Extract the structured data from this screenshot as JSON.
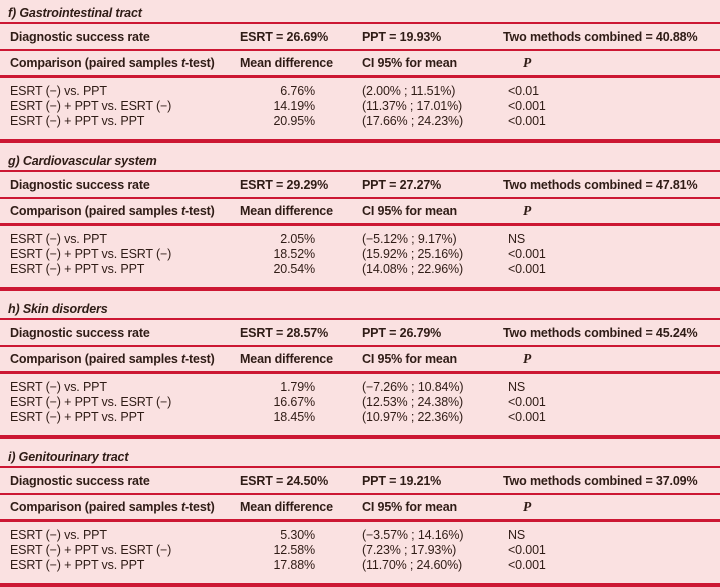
{
  "colors": {
    "background": "#fae1e1",
    "rule": "#cc1733",
    "text": "#2f1c16"
  },
  "table": {
    "success_label": "Diagnostic success rate",
    "comparison_header": {
      "pre": "Comparison (paired samples ",
      "t": "t",
      "post": "-test)",
      "mean": "Mean difference",
      "ci": "CI 95% for mean",
      "p": "P"
    },
    "sections": [
      {
        "title": "f) Gastrointestinal tract",
        "success": {
          "esrt": "ESRT = 26.69%",
          "ppt": "PPT = 19.93%",
          "combined": "Two methods combined = 40.88%"
        },
        "rows": [
          {
            "label": "ESRT (−) vs. PPT",
            "mean": "6.76%",
            "ci": "(2.00% ; 11.51%)",
            "p": "<0.01"
          },
          {
            "label": "ESRT (−) + PPT vs. ESRT (−)",
            "mean": "14.19%",
            "ci": "(11.37% ; 17.01%)",
            "p": "<0.001"
          },
          {
            "label": "ESRT (−) + PPT vs. PPT",
            "mean": "20.95%",
            "ci": "(17.66% ; 24.23%)",
            "p": "<0.001"
          }
        ]
      },
      {
        "title": "g) Cardiovascular system",
        "success": {
          "esrt": "ESRT = 29.29%",
          "ppt": "PPT = 27.27%",
          "combined": "Two methods combined = 47.81%"
        },
        "rows": [
          {
            "label": "ESRT (−) vs. PPT",
            "mean": "2.05%",
            "ci": "(−5.12% ; 9.17%)",
            "p": "NS"
          },
          {
            "label": "ESRT (−) + PPT vs. ESRT (−)",
            "mean": "18.52%",
            "ci": "(15.92% ; 25.16%)",
            "p": "<0.001"
          },
          {
            "label": "ESRT (−) + PPT vs. PPT",
            "mean": "20.54%",
            "ci": "(14.08% ; 22.96%)",
            "p": "<0.001"
          }
        ]
      },
      {
        "title": "h) Skin disorders",
        "success": {
          "esrt": "ESRT = 28.57%",
          "ppt": "PPT = 26.79%",
          "combined": "Two methods combined = 45.24%"
        },
        "rows": [
          {
            "label": "ESRT (−) vs. PPT",
            "mean": "1.79%",
            "ci": "(−7.26% ; 10.84%)",
            "p": "NS"
          },
          {
            "label": "ESRT (−) + PPT vs. ESRT (−)",
            "mean": "16.67%",
            "ci": "(12.53% ; 24.38%)",
            "p": "<0.001"
          },
          {
            "label": "ESRT (−) + PPT vs. PPT",
            "mean": "18.45%",
            "ci": "(10.97% ; 22.36%)",
            "p": "<0.001"
          }
        ]
      },
      {
        "title": "i) Genitourinary tract",
        "success": {
          "esrt": "ESRT = 24.50%",
          "ppt": "PPT = 19.21%",
          "combined": "Two methods combined = 37.09%"
        },
        "rows": [
          {
            "label": "ESRT (−) vs. PPT",
            "mean": "5.30%",
            "ci": "(−3.57% ; 14.16%)",
            "p": "NS"
          },
          {
            "label": "ESRT (−) + PPT vs. ESRT (−)",
            "mean": "12.58%",
            "ci": "(7.23% ; 17.93%)",
            "p": "<0.001"
          },
          {
            "label": "ESRT (−) + PPT vs. PPT",
            "mean": "17.88%",
            "ci": "(11.70% ; 24.60%)",
            "p": "<0.001"
          }
        ]
      }
    ]
  }
}
